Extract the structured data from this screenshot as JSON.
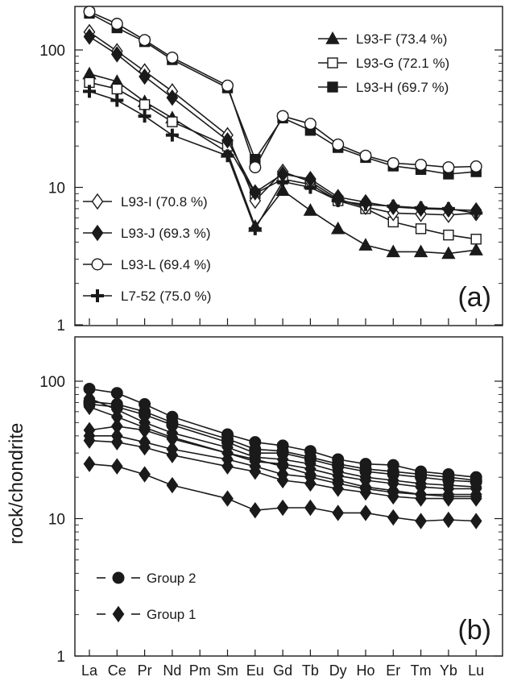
{
  "chart_data": [
    {
      "type": "line",
      "panel_label": "(a)",
      "yscale": "log",
      "ylim": [
        1,
        200
      ],
      "yticks": [
        "1",
        "10",
        "100"
      ],
      "categories": [
        "La",
        "Ce",
        "Pr",
        "Nd",
        "Pm",
        "Sm",
        "Eu",
        "Gd",
        "Tb",
        "Dy",
        "Ho",
        "Er",
        "Tm",
        "Yb",
        "Lu"
      ],
      "series": [
        {
          "name": "L93-F (73.4 %)",
          "marker": "triangle",
          "fill": "#1a1a1a",
          "values": [
            67,
            59,
            42,
            32,
            null,
            18,
            5.2,
            9.5,
            6.8,
            5.0,
            3.8,
            3.4,
            3.4,
            3.3,
            3.5
          ]
        },
        {
          "name": "L93-G (72.1 %)",
          "marker": "square",
          "fill": "#ffffff",
          "values": [
            58,
            52,
            40,
            30,
            null,
            20,
            9.0,
            11.5,
            10.5,
            8.0,
            7.0,
            5.6,
            5.0,
            4.5,
            4.2
          ]
        },
        {
          "name": "L93-H (69.7 %)",
          "marker": "square",
          "fill": "#1a1a1a",
          "values": [
            185,
            145,
            115,
            85,
            null,
            53,
            16,
            32,
            26,
            19.5,
            16.5,
            14.3,
            13.5,
            12.5,
            13.0
          ]
        },
        {
          "name": "L93-I (70.8 %)",
          "marker": "diamond",
          "fill": "#ffffff",
          "values": [
            135,
            98,
            70,
            50,
            null,
            24,
            8.0,
            13.0,
            11.0,
            8.2,
            7.2,
            6.5,
            6.4,
            6.3,
            6.5
          ]
        },
        {
          "name": "L93-J (69.3 %)",
          "marker": "diamond",
          "fill": "#1a1a1a",
          "values": [
            125,
            93,
            64,
            45,
            null,
            22,
            9.2,
            12.5,
            11.5,
            8.5,
            7.8,
            7.2,
            7.0,
            6.9,
            6.8
          ]
        },
        {
          "name": "L93-L (69.4 %)",
          "marker": "circle",
          "fill": "#ffffff",
          "values": [
            190,
            155,
            118,
            88,
            null,
            55,
            14,
            33,
            29,
            20.5,
            17,
            15,
            14.6,
            14,
            14.2
          ]
        },
        {
          "name": "L7-52 (75.0 %)",
          "marker": "cross",
          "fill": "#1a1a1a",
          "values": [
            50,
            43,
            33,
            24,
            null,
            17,
            5.0,
            11,
            10,
            8.0,
            7.5,
            7.3,
            7.1,
            7.0,
            6.5
          ]
        }
      ]
    },
    {
      "type": "line",
      "panel_label": "(b)",
      "yscale": "log",
      "ylim": [
        1,
        150
      ],
      "yticks": [
        "1",
        "10",
        "100"
      ],
      "ylabel": "rock/chondrite",
      "categories": [
        "La",
        "Ce",
        "Pr",
        "Nd",
        "Pm",
        "Sm",
        "Eu",
        "Gd",
        "Tb",
        "Dy",
        "Ho",
        "Er",
        "Tm",
        "Yb",
        "Lu"
      ],
      "series": [
        {
          "group": "Group 2",
          "marker": "circle",
          "fill": "#1a1a1a",
          "values": [
            88,
            82,
            68,
            55,
            null,
            41,
            36,
            34,
            31,
            27,
            25,
            24.5,
            22,
            21,
            20
          ]
        },
        {
          "group": "Group 2",
          "marker": "circle",
          "fill": "#1a1a1a",
          "values": [
            71,
            68,
            60,
            50,
            null,
            38,
            32,
            31,
            28,
            25,
            23,
            22,
            21,
            20,
            19
          ]
        },
        {
          "group": "Group 2",
          "marker": "circle",
          "fill": "#1a1a1a",
          "values": [
            68,
            65,
            57,
            48,
            null,
            36,
            30,
            30,
            27,
            24,
            22,
            21,
            20,
            19,
            18.5
          ]
        },
        {
          "group": "Group 1",
          "marker": "diamond",
          "fill": "#1a1a1a",
          "values": [
            75,
            62,
            50,
            42,
            null,
            33,
            28,
            27,
            25,
            22,
            20,
            19,
            18,
            17.5,
            17
          ]
        },
        {
          "group": "Group 1",
          "marker": "diamond",
          "fill": "#1a1a1a",
          "values": [
            65,
            55,
            46,
            39,
            null,
            30,
            26,
            25,
            23,
            20.5,
            19,
            18,
            17,
            16.5,
            16.5
          ]
        },
        {
          "group": "Group 1",
          "marker": "diamond",
          "fill": "#1a1a1a",
          "values": [
            44,
            47,
            44,
            38,
            null,
            30,
            27,
            24,
            21,
            19,
            17,
            16,
            15,
            15,
            15
          ]
        },
        {
          "group": "Group 1",
          "marker": "diamond",
          "fill": "#1a1a1a",
          "values": [
            40,
            40,
            36,
            32,
            null,
            27,
            24,
            21,
            20,
            18,
            16.5,
            15.5,
            15,
            14.5,
            14.5
          ]
        },
        {
          "group": "Group 1",
          "marker": "diamond",
          "fill": "#1a1a1a",
          "values": [
            37,
            36,
            33,
            29,
            null,
            24,
            22,
            19,
            18,
            16.5,
            15.5,
            14.5,
            14,
            14,
            14
          ]
        },
        {
          "group": "Group 1",
          "marker": "diamond",
          "fill": "#1a1a1a",
          "values": [
            25,
            24,
            21,
            17.5,
            null,
            14,
            11.5,
            12,
            12,
            11,
            11,
            10.2,
            9.6,
            9.8,
            9.6
          ]
        }
      ],
      "legend": [
        {
          "label": "Group 2",
          "marker": "circle"
        },
        {
          "label": "Group 1",
          "marker": "diamond"
        }
      ]
    }
  ]
}
